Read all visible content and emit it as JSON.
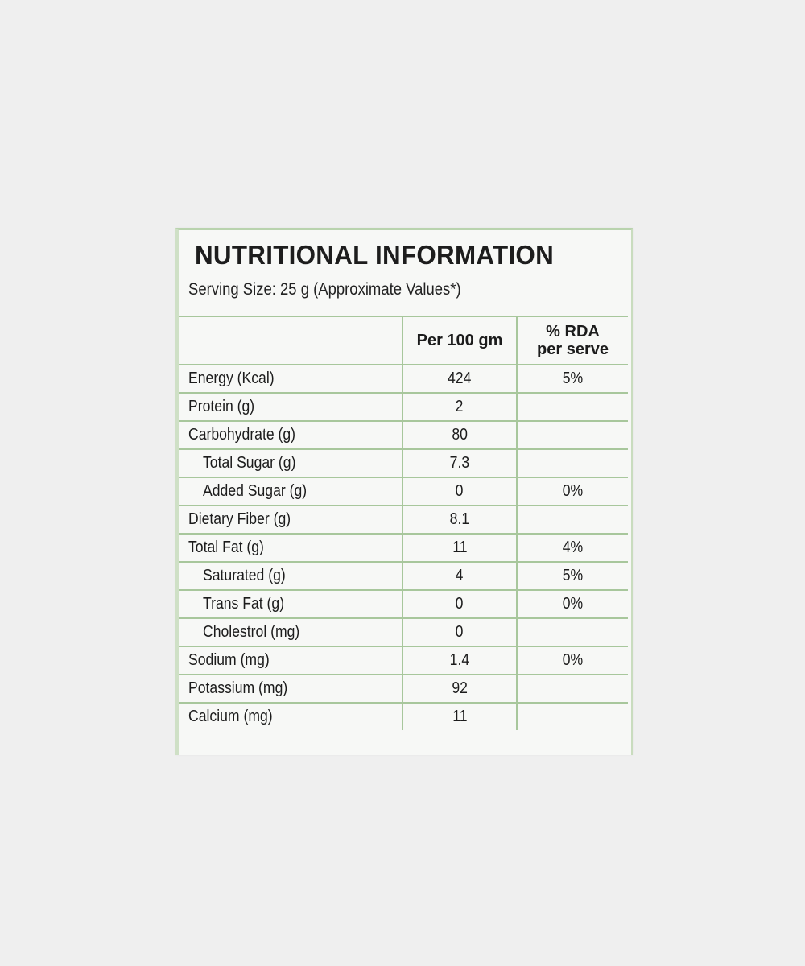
{
  "title": "NUTRITIONAL INFORMATION",
  "serving": "Serving Size: 25 g (Approximate Values*)",
  "headers": {
    "nutrient": "",
    "per100": "Per 100 gm",
    "rda": "% RDA per serve"
  },
  "rows": [
    {
      "name": "Energy (Kcal)",
      "per100": "424",
      "rda": "5%",
      "indent": false
    },
    {
      "name": "Protein (g)",
      "per100": "2",
      "rda": "",
      "indent": false
    },
    {
      "name": "Carbohydrate (g)",
      "per100": "80",
      "rda": "",
      "indent": false
    },
    {
      "name": "Total Sugar (g)",
      "per100": "7.3",
      "rda": "",
      "indent": true
    },
    {
      "name": "Added Sugar (g)",
      "per100": "0",
      "rda": "0%",
      "indent": true
    },
    {
      "name": "Dietary Fiber (g)",
      "per100": "8.1",
      "rda": "",
      "indent": false
    },
    {
      "name": "Total Fat (g)",
      "per100": "11",
      "rda": "4%",
      "indent": false
    },
    {
      "name": "Saturated (g)",
      "per100": "4",
      "rda": "5%",
      "indent": true
    },
    {
      "name": "Trans Fat (g)",
      "per100": "0",
      "rda": "0%",
      "indent": true
    },
    {
      "name": "Cholestrol (mg)",
      "per100": "0",
      "rda": "",
      "indent": true
    },
    {
      "name": "Sodium (mg)",
      "per100": "1.4",
      "rda": "0%",
      "indent": false
    },
    {
      "name": "Potassium (mg)",
      "per100": "92",
      "rda": "",
      "indent": false
    },
    {
      "name": "Calcium (mg)",
      "per100": "11",
      "rda": "",
      "indent": false
    }
  ],
  "colors": {
    "border": "#a8c79c",
    "background": "#efefef"
  }
}
